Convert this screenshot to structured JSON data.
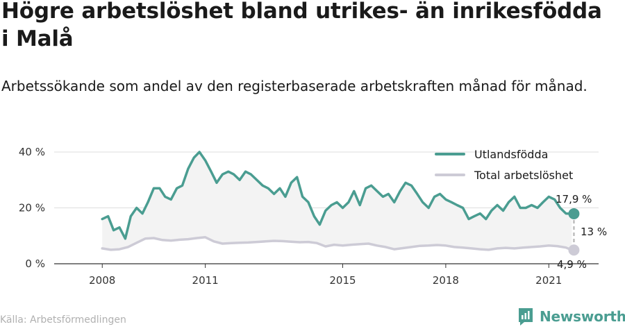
{
  "title": "Högre arbetslöshet bland utrikes- än inrikesfödda i Malå",
  "subtitle": "Arbetssökande som andel av den registerbaserade arbetskraften månad för månad.",
  "source": "Källa: Arbetsförmedlingen",
  "brand": "Newsworthy",
  "colors": {
    "foreign": "#4a9d91",
    "total": "#cdcbd6",
    "band": "#f3f3f3",
    "grid": "#dddddd"
  },
  "chart_data": {
    "type": "line",
    "xlabel": "",
    "ylabel": "",
    "ylim": [
      0,
      40
    ],
    "yticks": [
      0,
      20,
      40
    ],
    "ytick_labels": [
      "0 %",
      "20 %",
      "40 %"
    ],
    "xticks": [
      2008,
      2011,
      2015,
      2018,
      2021
    ],
    "xtick_labels": [
      "2008",
      "2011",
      "2015",
      "2018",
      "2021"
    ],
    "legend_position": "top-right",
    "series": [
      {
        "name": "Utlandsfödda",
        "x": [
          2008.0,
          2008.17,
          2008.33,
          2008.5,
          2008.67,
          2008.83,
          2009.0,
          2009.17,
          2009.33,
          2009.5,
          2009.67,
          2009.83,
          2010.0,
          2010.17,
          2010.33,
          2010.5,
          2010.67,
          2010.83,
          2011.0,
          2011.17,
          2011.33,
          2011.5,
          2011.67,
          2011.83,
          2012.0,
          2012.17,
          2012.33,
          2012.5,
          2012.67,
          2012.83,
          2013.0,
          2013.17,
          2013.33,
          2013.5,
          2013.67,
          2013.83,
          2014.0,
          2014.17,
          2014.33,
          2014.5,
          2014.67,
          2014.83,
          2015.0,
          2015.17,
          2015.33,
          2015.5,
          2015.67,
          2015.83,
          2016.0,
          2016.17,
          2016.33,
          2016.5,
          2016.67,
          2016.83,
          2017.0,
          2017.17,
          2017.33,
          2017.5,
          2017.67,
          2017.83,
          2018.0,
          2018.17,
          2018.33,
          2018.5,
          2018.67,
          2018.83,
          2019.0,
          2019.17,
          2019.33,
          2019.5,
          2019.67,
          2019.83,
          2020.0,
          2020.17,
          2020.33,
          2020.5,
          2020.67,
          2020.83,
          2021.0,
          2021.17,
          2021.33,
          2021.5,
          2021.67
        ],
        "values": [
          16,
          17,
          12,
          13,
          9,
          17,
          20,
          18,
          22,
          27,
          27,
          24,
          23,
          27,
          28,
          34,
          38,
          40,
          37,
          33,
          29,
          32,
          33,
          32,
          30,
          33,
          32,
          30,
          28,
          27,
          25,
          27,
          24,
          29,
          31,
          24,
          22,
          17,
          14,
          19,
          21,
          22,
          20,
          22,
          26,
          21,
          27,
          28,
          26,
          24,
          25,
          22,
          26,
          29,
          28,
          25,
          22,
          20,
          24,
          25,
          23,
          22,
          21,
          20,
          16,
          17,
          18,
          16,
          19,
          21,
          19,
          22,
          24,
          20,
          20,
          21,
          20,
          22,
          24,
          23,
          20,
          18,
          17.9
        ]
      },
      {
        "name": "Total arbetslöshet",
        "x": [
          2008.0,
          2008.25,
          2008.5,
          2008.75,
          2009.0,
          2009.25,
          2009.5,
          2009.75,
          2010.0,
          2010.25,
          2010.5,
          2010.75,
          2011.0,
          2011.25,
          2011.5,
          2011.75,
          2012.0,
          2012.25,
          2012.5,
          2012.75,
          2013.0,
          2013.25,
          2013.5,
          2013.75,
          2014.0,
          2014.25,
          2014.5,
          2014.75,
          2015.0,
          2015.25,
          2015.5,
          2015.75,
          2016.0,
          2016.25,
          2016.5,
          2016.75,
          2017.0,
          2017.25,
          2017.5,
          2017.75,
          2018.0,
          2018.25,
          2018.5,
          2018.75,
          2019.0,
          2019.25,
          2019.5,
          2019.75,
          2020.0,
          2020.25,
          2020.5,
          2020.75,
          2021.0,
          2021.25,
          2021.5,
          2021.67
        ],
        "values": [
          5.5,
          5,
          5.2,
          6,
          7.5,
          9,
          9.2,
          8.5,
          8.3,
          8.6,
          8.8,
          9.2,
          9.5,
          8,
          7.2,
          7.4,
          7.5,
          7.6,
          7.8,
          8,
          8.2,
          8.1,
          7.9,
          7.7,
          7.8,
          7.4,
          6.2,
          6.8,
          6.5,
          6.8,
          7,
          7.2,
          6.5,
          6,
          5.2,
          5.6,
          6,
          6.4,
          6.5,
          6.7,
          6.5,
          6,
          5.8,
          5.5,
          5.2,
          5,
          5.5,
          5.7,
          5.5,
          5.8,
          6,
          6.2,
          6.5,
          6.3,
          5.8,
          4.9
        ]
      }
    ],
    "annotations": {
      "foreign_last": "17,9 %",
      "total_last": "4,9 %",
      "gap": "13 %"
    }
  }
}
